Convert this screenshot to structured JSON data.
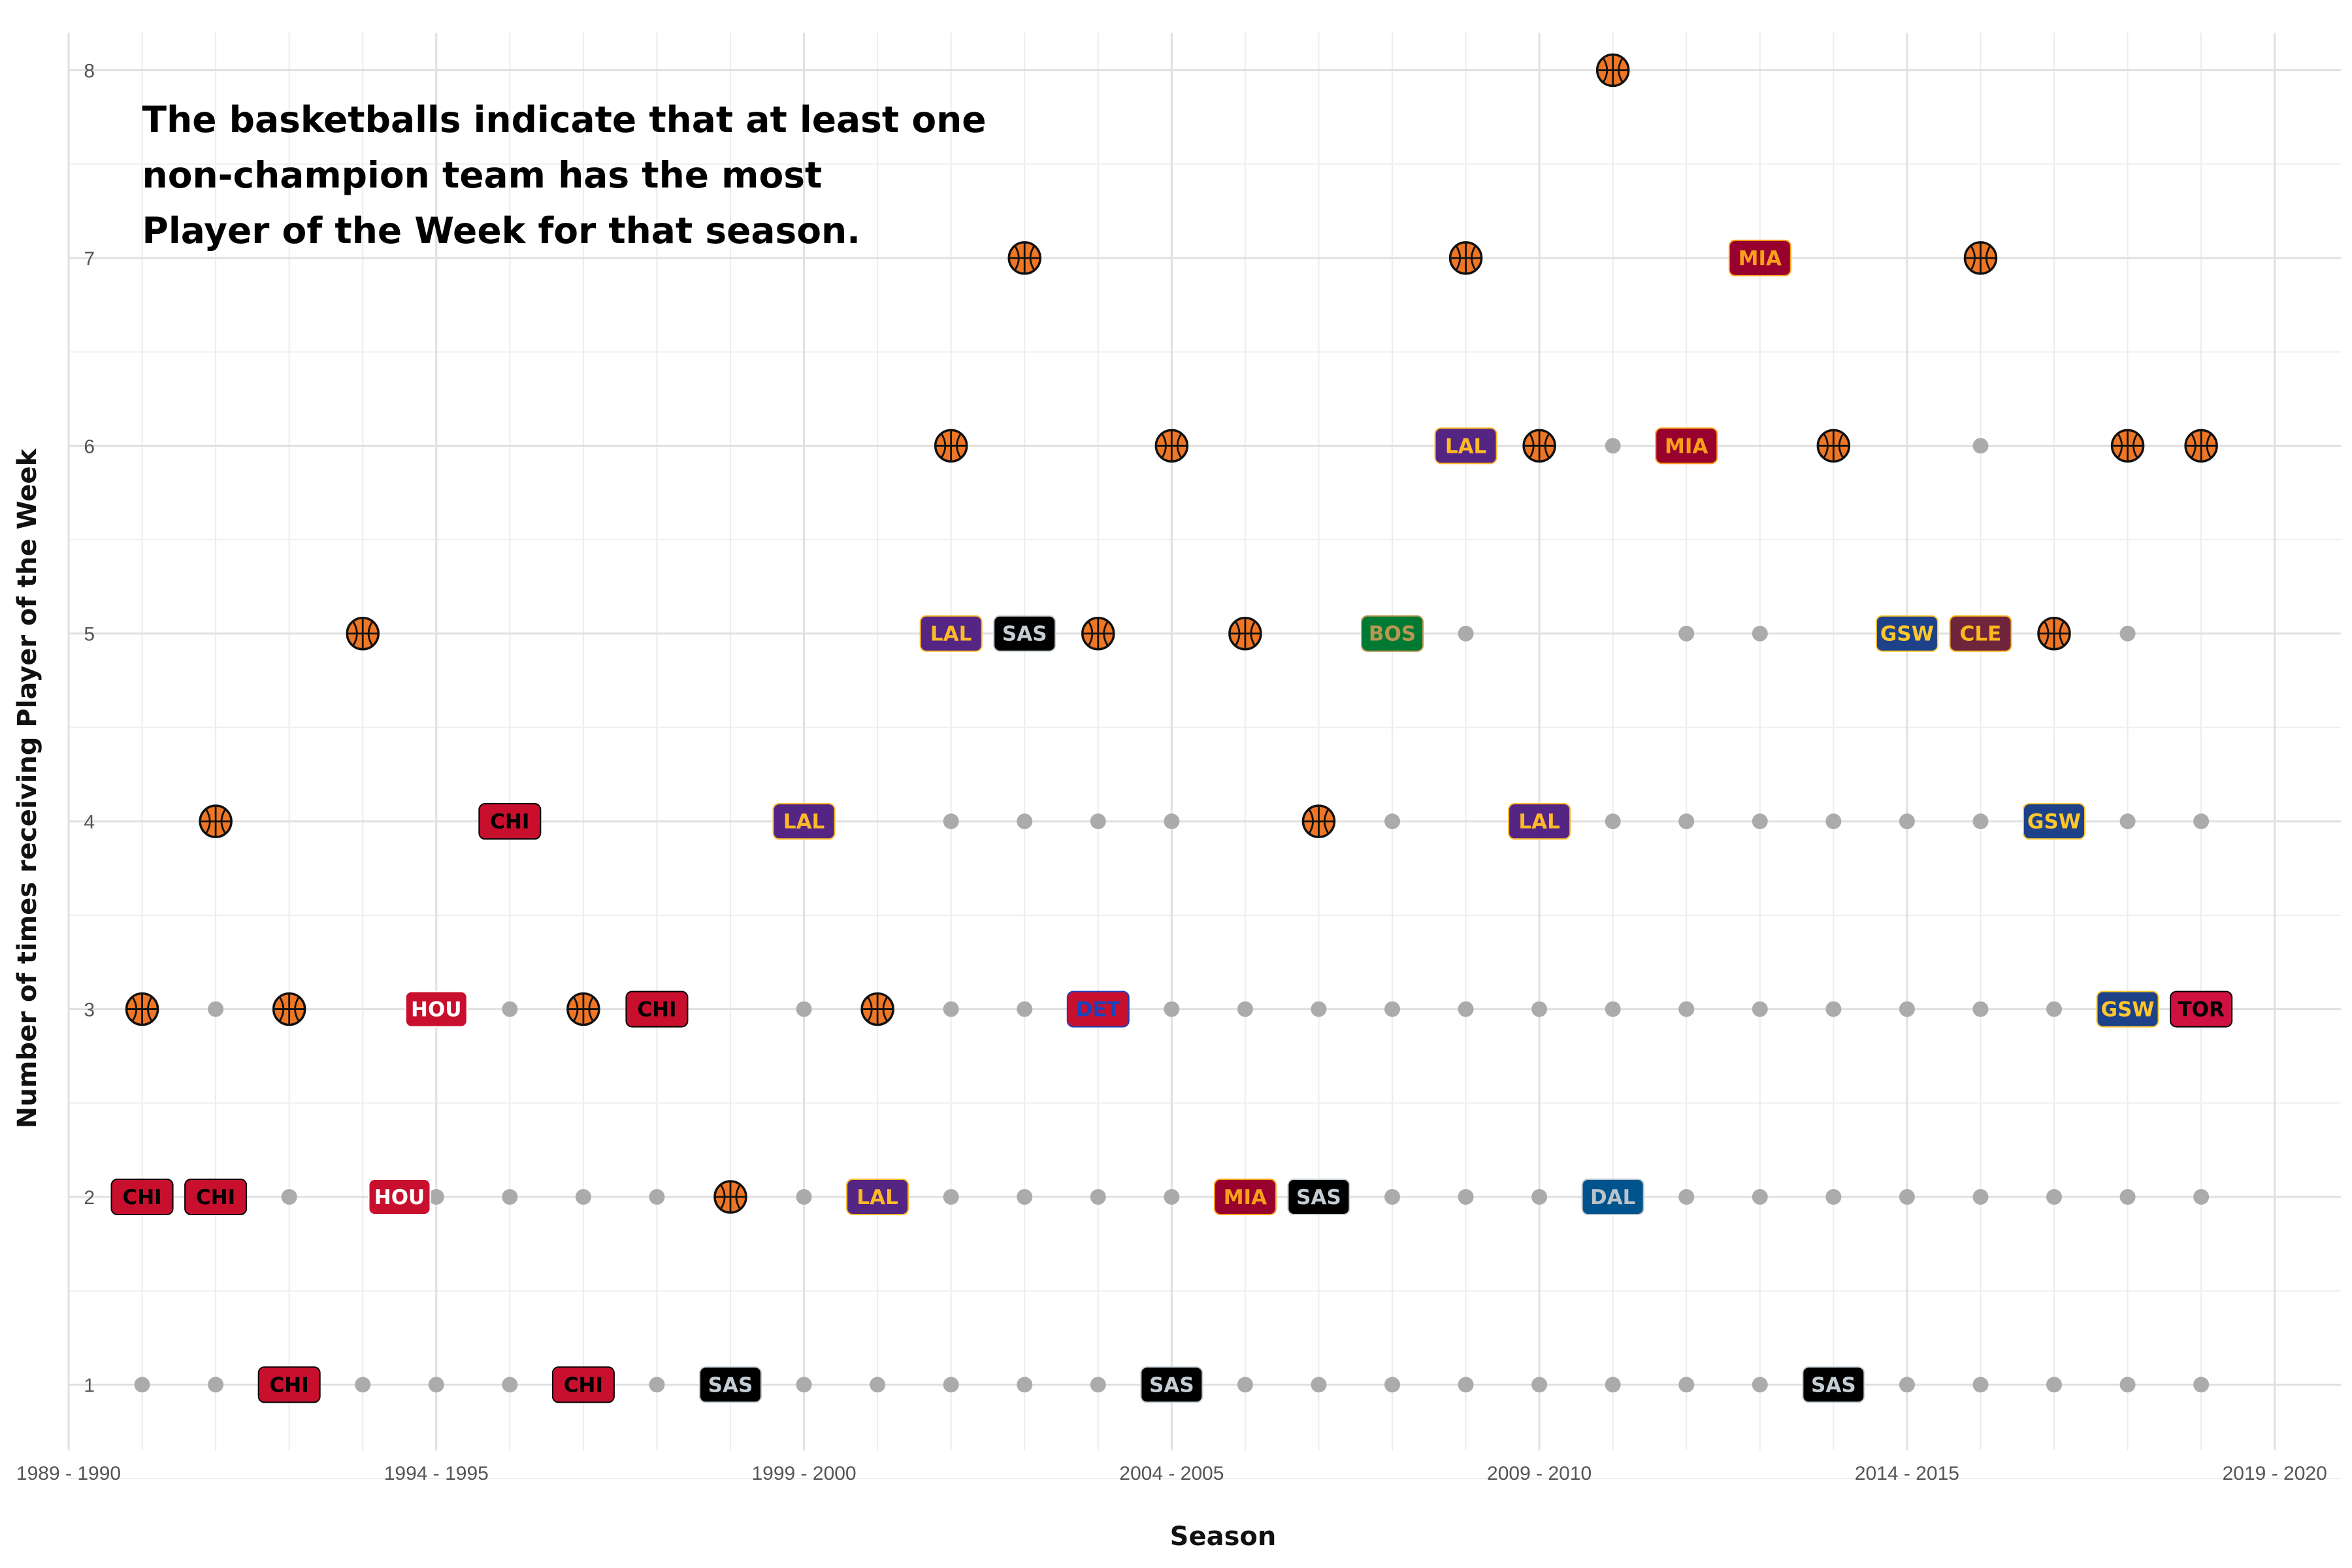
{
  "chart_data": {
    "type": "scatter",
    "xlabel": "Season",
    "ylabel": "Number of times receiving Player of the Week",
    "annotation": [
      "The basketballs indicate that at least one",
      "non-champion team has the most",
      "Player of the Week for that season."
    ],
    "x_ticks": [
      "1989 - 1990",
      "1994 - 1995",
      "1999 - 2000",
      "2004 - 2005",
      "2009 - 2010",
      "2014 - 2015",
      "2019 - 2020"
    ],
    "y_ticks": [
      1,
      2,
      3,
      4,
      5,
      6,
      7,
      8
    ],
    "xlim": [
      0,
      30.9
    ],
    "ylim": [
      0.65,
      8.2
    ],
    "grid": true,
    "note_x": 1,
    "basketballs": [
      {
        "x": 1,
        "y": 3
      },
      {
        "x": 2,
        "y": 4
      },
      {
        "x": 3,
        "y": 3
      },
      {
        "x": 4,
        "y": 5
      },
      {
        "x": 7,
        "y": 3
      },
      {
        "x": 9,
        "y": 2
      },
      {
        "x": 11,
        "y": 3
      },
      {
        "x": 12,
        "y": 6
      },
      {
        "x": 13,
        "y": 7
      },
      {
        "x": 14,
        "y": 5
      },
      {
        "x": 15,
        "y": 6
      },
      {
        "x": 16,
        "y": 5
      },
      {
        "x": 17,
        "y": 4
      },
      {
        "x": 19,
        "y": 7
      },
      {
        "x": 20,
        "y": 6
      },
      {
        "x": 21,
        "y": 8
      },
      {
        "x": 24,
        "y": 6
      },
      {
        "x": 26,
        "y": 7
      },
      {
        "x": 27,
        "y": 5
      },
      {
        "x": 28,
        "y": 6
      },
      {
        "x": 29,
        "y": 6
      }
    ],
    "team_labels": [
      {
        "x": 1,
        "y": 2,
        "team": "CHI",
        "fill": "#c8102e",
        "text": "#000000"
      },
      {
        "x": 2,
        "y": 2,
        "team": "CHI",
        "fill": "#c8102e",
        "text": "#000000"
      },
      {
        "x": 3,
        "y": 1,
        "team": "CHI",
        "fill": "#c8102e",
        "text": "#000000"
      },
      {
        "x": 4.5,
        "y": 2,
        "team": "HOU",
        "fill": "#c8102e",
        "text": "#ffffff"
      },
      {
        "x": 5,
        "y": 3,
        "team": "HOU",
        "fill": "#c8102e",
        "text": "#ffffff"
      },
      {
        "x": 6,
        "y": 4,
        "team": "CHI",
        "fill": "#c8102e",
        "text": "#000000"
      },
      {
        "x": 7,
        "y": 1,
        "team": "CHI",
        "fill": "#c8102e",
        "text": "#000000"
      },
      {
        "x": 8,
        "y": 3,
        "team": "CHI",
        "fill": "#c8102e",
        "text": "#000000"
      },
      {
        "x": 9,
        "y": 1,
        "team": "SAS",
        "fill": "#000000",
        "text": "#c4ced4"
      },
      {
        "x": 10,
        "y": 4,
        "team": "LAL",
        "fill": "#552583",
        "text": "#fdb927"
      },
      {
        "x": 11,
        "y": 2,
        "team": "LAL",
        "fill": "#552583",
        "text": "#fdb927"
      },
      {
        "x": 12,
        "y": 5,
        "team": "LAL",
        "fill": "#552583",
        "text": "#fdb927"
      },
      {
        "x": 13,
        "y": 5,
        "team": "SAS",
        "fill": "#000000",
        "text": "#c4ced4"
      },
      {
        "x": 14,
        "y": 3,
        "team": "DET",
        "fill": "#c8102e",
        "text": "#1d42ba"
      },
      {
        "x": 15,
        "y": 1,
        "team": "SAS",
        "fill": "#000000",
        "text": "#c4ced4"
      },
      {
        "x": 16,
        "y": 2,
        "team": "MIA",
        "fill": "#98002e",
        "text": "#f9a01b"
      },
      {
        "x": 17,
        "y": 2,
        "team": "SAS",
        "fill": "#000000",
        "text": "#c4ced4"
      },
      {
        "x": 18,
        "y": 5,
        "team": "BOS",
        "fill": "#007a33",
        "text": "#ba9653"
      },
      {
        "x": 19,
        "y": 6,
        "team": "LAL",
        "fill": "#552583",
        "text": "#fdb927"
      },
      {
        "x": 20,
        "y": 4,
        "team": "LAL",
        "fill": "#552583",
        "text": "#fdb927"
      },
      {
        "x": 21,
        "y": 2,
        "team": "DAL",
        "fill": "#00538c",
        "text": "#b8c4ca"
      },
      {
        "x": 22,
        "y": 6,
        "team": "MIA",
        "fill": "#98002e",
        "text": "#f9a01b"
      },
      {
        "x": 23,
        "y": 7,
        "team": "MIA",
        "fill": "#98002e",
        "text": "#f9a01b"
      },
      {
        "x": 24,
        "y": 1,
        "team": "SAS",
        "fill": "#000000",
        "text": "#c4ced4"
      },
      {
        "x": 25,
        "y": 5,
        "team": "GSW",
        "fill": "#1d428a",
        "text": "#ffc72c"
      },
      {
        "x": 26,
        "y": 5,
        "team": "CLE",
        "fill": "#6f263d",
        "text": "#ffb81c"
      },
      {
        "x": 27,
        "y": 4,
        "team": "GSW",
        "fill": "#1d428a",
        "text": "#ffc72c"
      },
      {
        "x": 28,
        "y": 3,
        "team": "GSW",
        "fill": "#1d428a",
        "text": "#ffc72c"
      },
      {
        "x": 29,
        "y": 3,
        "team": "TOR",
        "fill": "#ce1141",
        "text": "#000000"
      }
    ],
    "gray_points": [
      {
        "x": 1,
        "y": 1
      },
      {
        "x": 2,
        "y": 1
      },
      {
        "x": 4,
        "y": 1
      },
      {
        "x": 5,
        "y": 1
      },
      {
        "x": 6,
        "y": 1
      },
      {
        "x": 8,
        "y": 1
      },
      {
        "x": 10,
        "y": 1
      },
      {
        "x": 11,
        "y": 1
      },
      {
        "x": 12,
        "y": 1
      },
      {
        "x": 13,
        "y": 1
      },
      {
        "x": 14,
        "y": 1
      },
      {
        "x": 16,
        "y": 1
      },
      {
        "x": 17,
        "y": 1
      },
      {
        "x": 18,
        "y": 1
      },
      {
        "x": 19,
        "y": 1
      },
      {
        "x": 20,
        "y": 1
      },
      {
        "x": 21,
        "y": 1
      },
      {
        "x": 22,
        "y": 1
      },
      {
        "x": 23,
        "y": 1
      },
      {
        "x": 25,
        "y": 1
      },
      {
        "x": 26,
        "y": 1
      },
      {
        "x": 27,
        "y": 1
      },
      {
        "x": 28,
        "y": 1
      },
      {
        "x": 29,
        "y": 1
      },
      {
        "x": 3,
        "y": 2
      },
      {
        "x": 5,
        "y": 2
      },
      {
        "x": 6,
        "y": 2
      },
      {
        "x": 7,
        "y": 2
      },
      {
        "x": 8,
        "y": 2
      },
      {
        "x": 10,
        "y": 2
      },
      {
        "x": 12,
        "y": 2
      },
      {
        "x": 13,
        "y": 2
      },
      {
        "x": 14,
        "y": 2
      },
      {
        "x": 15,
        "y": 2
      },
      {
        "x": 18,
        "y": 2
      },
      {
        "x": 19,
        "y": 2
      },
      {
        "x": 20,
        "y": 2
      },
      {
        "x": 22,
        "y": 2
      },
      {
        "x": 23,
        "y": 2
      },
      {
        "x": 24,
        "y": 2
      },
      {
        "x": 25,
        "y": 2
      },
      {
        "x": 26,
        "y": 2
      },
      {
        "x": 27,
        "y": 2
      },
      {
        "x": 28,
        "y": 2
      },
      {
        "x": 29,
        "y": 2
      },
      {
        "x": 2,
        "y": 3
      },
      {
        "x": 6,
        "y": 3
      },
      {
        "x": 10,
        "y": 3
      },
      {
        "x": 12,
        "y": 3
      },
      {
        "x": 13,
        "y": 3
      },
      {
        "x": 15,
        "y": 3
      },
      {
        "x": 16,
        "y": 3
      },
      {
        "x": 17,
        "y": 3
      },
      {
        "x": 18,
        "y": 3
      },
      {
        "x": 19,
        "y": 3
      },
      {
        "x": 20,
        "y": 3
      },
      {
        "x": 21,
        "y": 3
      },
      {
        "x": 22,
        "y": 3
      },
      {
        "x": 23,
        "y": 3
      },
      {
        "x": 24,
        "y": 3
      },
      {
        "x": 25,
        "y": 3
      },
      {
        "x": 26,
        "y": 3
      },
      {
        "x": 27,
        "y": 3
      },
      {
        "x": 12,
        "y": 4
      },
      {
        "x": 13,
        "y": 4
      },
      {
        "x": 14,
        "y": 4
      },
      {
        "x": 15,
        "y": 4
      },
      {
        "x": 18,
        "y": 4
      },
      {
        "x": 21,
        "y": 4
      },
      {
        "x": 22,
        "y": 4
      },
      {
        "x": 23,
        "y": 4
      },
      {
        "x": 24,
        "y": 4
      },
      {
        "x": 25,
        "y": 4
      },
      {
        "x": 26,
        "y": 4
      },
      {
        "x": 28,
        "y": 4
      },
      {
        "x": 29,
        "y": 4
      },
      {
        "x": 19,
        "y": 5
      },
      {
        "x": 22,
        "y": 5
      },
      {
        "x": 23,
        "y": 5
      },
      {
        "x": 28,
        "y": 5
      },
      {
        "x": 21,
        "y": 6
      },
      {
        "x": 26,
        "y": 6
      }
    ]
  }
}
